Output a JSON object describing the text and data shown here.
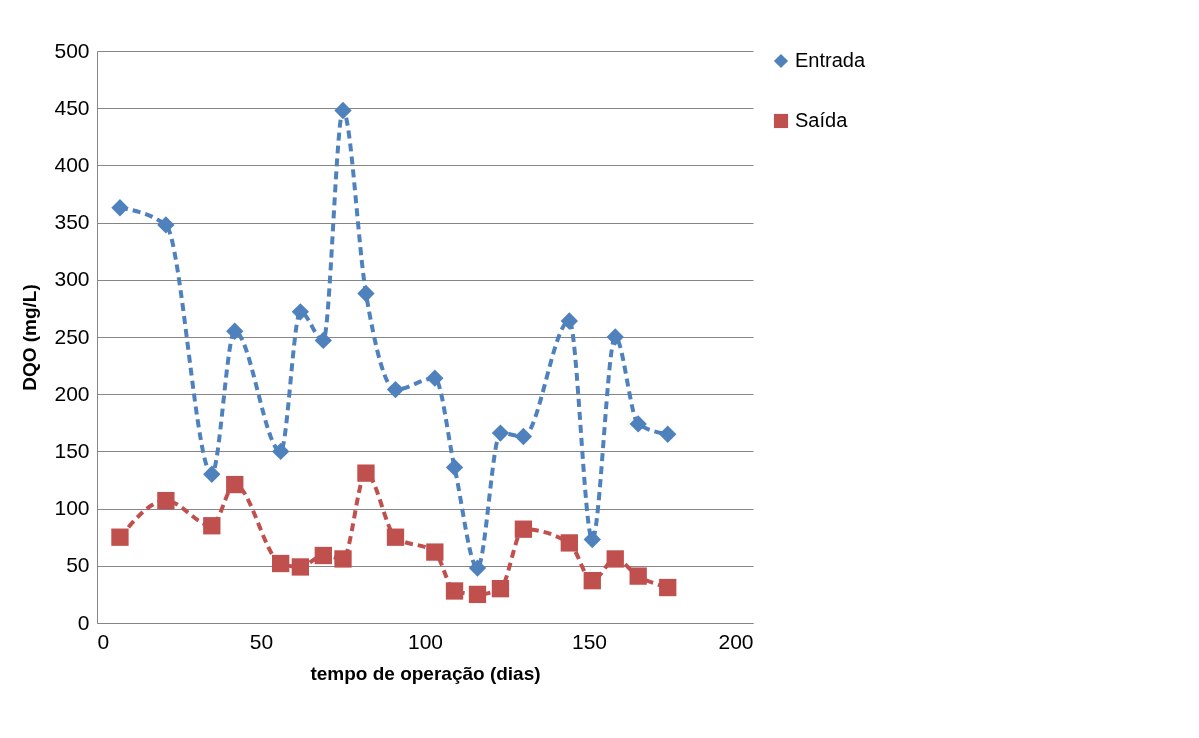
{
  "chart_data": {
    "type": "line",
    "xlabel": "tempo de operação (dias)",
    "ylabel": "DQO (mg/L)",
    "xlim": [
      0,
      200
    ],
    "xticks": [
      0,
      50,
      100,
      150,
      200
    ],
    "ylim": [
      0,
      500
    ],
    "yticks": [
      0,
      50,
      100,
      150,
      200,
      250,
      300,
      350,
      400,
      450,
      500
    ],
    "grid": "y",
    "legend": "right",
    "line_style": "dashed",
    "series": [
      {
        "name": "Entrada",
        "color": "#4f81bd",
        "marker": "diamond",
        "x": [
          7,
          21,
          35,
          42,
          56,
          62,
          69,
          75,
          82,
          91,
          103,
          109,
          116,
          123,
          130,
          144,
          151,
          158,
          165,
          174
        ],
        "values": [
          363,
          348,
          130,
          255,
          150,
          272,
          247,
          448,
          288,
          204,
          214,
          136,
          48,
          166,
          163,
          264,
          73,
          250,
          174,
          165
        ]
      },
      {
        "name": "Saída",
        "color": "#c0504d",
        "marker": "square",
        "x": [
          7,
          21,
          35,
          42,
          56,
          62,
          69,
          75,
          82,
          91,
          103,
          109,
          116,
          123,
          130,
          144,
          151,
          158,
          165,
          174
        ],
        "values": [
          75,
          107,
          85,
          121,
          52,
          49,
          59,
          56,
          131,
          75,
          62,
          28,
          25,
          30,
          82,
          70,
          37,
          56,
          41,
          31
        ]
      }
    ]
  }
}
